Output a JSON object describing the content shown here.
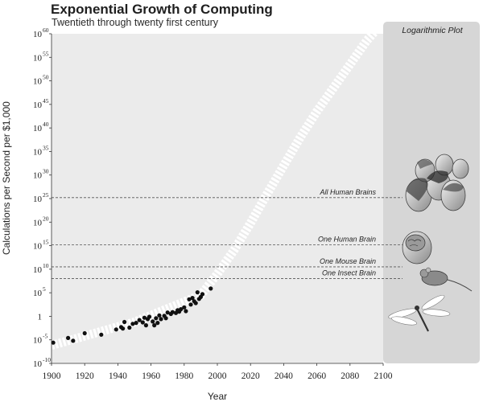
{
  "title": "Exponential Growth of Computing",
  "subtitle": "Twentieth through twenty first century",
  "panel_label": "Logarithmic Plot",
  "colors": {
    "plot_bg": "#ebebeb",
    "panel_bg": "#d6d6d6",
    "dot": "#111111",
    "trend": "#ffffff",
    "dashed": "#555555"
  },
  "chart_data": {
    "type": "scatter",
    "title": "Exponential Growth of Computing",
    "subtitle": "Twentieth through twenty first century",
    "xlabel": "Year",
    "ylabel": "Calculations per Second per $1,000",
    "xlim": [
      1900,
      2100
    ],
    "ylim": [
      -10,
      60
    ],
    "y_scale": "log10",
    "grid": false,
    "x_ticks": [
      "1900",
      "1920",
      "1940",
      "1960",
      "1980",
      "2000",
      "2020",
      "2040",
      "2060",
      "2080",
      "2100"
    ],
    "y_ticks": [
      {
        "base": "10",
        "exp": "60"
      },
      {
        "base": "10",
        "exp": "55"
      },
      {
        "base": "10",
        "exp": "50"
      },
      {
        "base": "10",
        "exp": "45"
      },
      {
        "base": "10",
        "exp": "40"
      },
      {
        "base": "10",
        "exp": "35"
      },
      {
        "base": "10",
        "exp": "30"
      },
      {
        "base": "10",
        "exp": "25"
      },
      {
        "base": "10",
        "exp": "20"
      },
      {
        "base": "10",
        "exp": "15"
      },
      {
        "base": "10",
        "exp": "10"
      },
      {
        "base": "10",
        "exp": "5"
      },
      {
        "base": "1",
        "exp": ""
      },
      {
        "base": "10",
        "exp": "-5"
      },
      {
        "base": "10",
        "exp": "-10"
      }
    ],
    "y_tick_values": [
      60,
      55,
      50,
      45,
      40,
      35,
      30,
      25,
      20,
      15,
      10,
      5,
      0,
      -5,
      -10
    ],
    "x_tick_values": [
      1900,
      1920,
      1940,
      1960,
      1980,
      2000,
      2020,
      2040,
      2060,
      2080,
      2100
    ],
    "reference_lines": [
      {
        "label": "All Human Brains",
        "y": 25.2
      },
      {
        "label": "One Human Brain",
        "y": 15.2
      },
      {
        "label": "One Mouse Brain",
        "y": 10.5
      },
      {
        "label": "One Insect Brain",
        "y": 8.0
      }
    ],
    "series": [
      {
        "points": [
          [
            1901,
            -5.6
          ],
          [
            1910,
            -4.6
          ],
          [
            1913,
            -5.2
          ],
          [
            1920,
            -3.6
          ],
          [
            1930,
            -3.9
          ],
          [
            1939,
            -2.8
          ],
          [
            1942,
            -2.3
          ],
          [
            1943,
            -2.6
          ],
          [
            1944,
            -1.2
          ],
          [
            1947,
            -2.4
          ],
          [
            1949,
            -1.6
          ],
          [
            1951,
            -1.4
          ],
          [
            1953,
            -0.8
          ],
          [
            1955,
            -1.3
          ],
          [
            1956,
            -0.3
          ],
          [
            1957,
            -1.9
          ],
          [
            1958,
            -0.6
          ],
          [
            1959,
            -0.1
          ],
          [
            1961,
            -1.1
          ],
          [
            1962,
            -1.9
          ],
          [
            1963,
            -0.4
          ],
          [
            1964,
            -1.4
          ],
          [
            1965,
            0.2
          ],
          [
            1966,
            -0.6
          ],
          [
            1968,
            0.1
          ],
          [
            1969,
            -0.4
          ],
          [
            1970,
            0.8
          ],
          [
            1972,
            0.5
          ],
          [
            1973,
            0.9
          ],
          [
            1975,
            0.7
          ],
          [
            1976,
            1.3
          ],
          [
            1977,
            1.0
          ],
          [
            1978,
            1.5
          ],
          [
            1980,
            1.9
          ],
          [
            1981,
            1.1
          ],
          [
            1983,
            3.6
          ],
          [
            1984,
            2.5
          ],
          [
            1985,
            3.9
          ],
          [
            1986,
            3.2
          ],
          [
            1987,
            2.8
          ],
          [
            1988,
            5.1
          ],
          [
            1989,
            3.7
          ],
          [
            1990,
            4.1
          ],
          [
            1991,
            4.7
          ],
          [
            1996,
            5.9
          ]
        ]
      }
    ],
    "trend": [
      [
        1900,
        -6.2
      ],
      [
        1950,
        -1.2
      ],
      [
        1990,
        4.5
      ],
      [
        2000,
        9
      ],
      [
        2010,
        14
      ],
      [
        2020,
        19.8
      ],
      [
        2030,
        26
      ],
      [
        2040,
        32
      ],
      [
        2050,
        38
      ],
      [
        2060,
        43.5
      ],
      [
        2070,
        48.5
      ],
      [
        2080,
        53.5
      ],
      [
        2090,
        58.5
      ],
      [
        2095,
        60.5
      ]
    ]
  }
}
